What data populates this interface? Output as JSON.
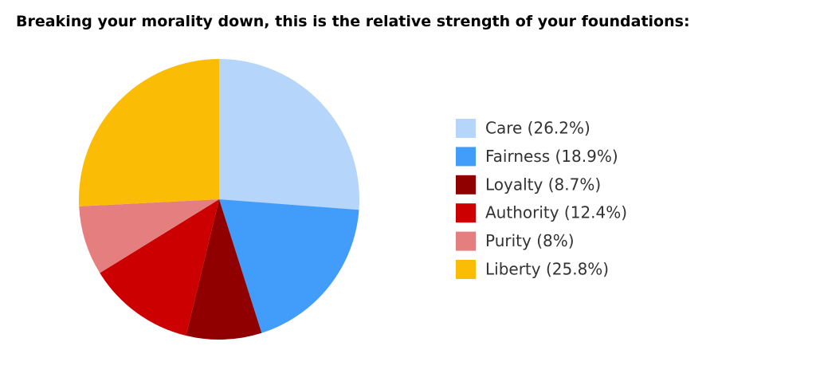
{
  "chart_data": {
    "type": "pie",
    "title": "Breaking your morality down, this is the relative strength of your foundations:",
    "categories": [
      "Care (26.2%)",
      "Fairness (18.9%)",
      "Loyalty (8.7%)",
      "Authority (12.4%)",
      "Purity (8%)",
      "Liberty (25.8%)"
    ],
    "values": [
      26.2,
      18.9,
      8.7,
      12.4,
      8,
      25.8
    ],
    "colors": [
      "#b5d5fb",
      "#419cfa",
      "#900000",
      "#cc0000",
      "#e57f7f",
      "#fbbc05"
    ],
    "legend": "right"
  }
}
